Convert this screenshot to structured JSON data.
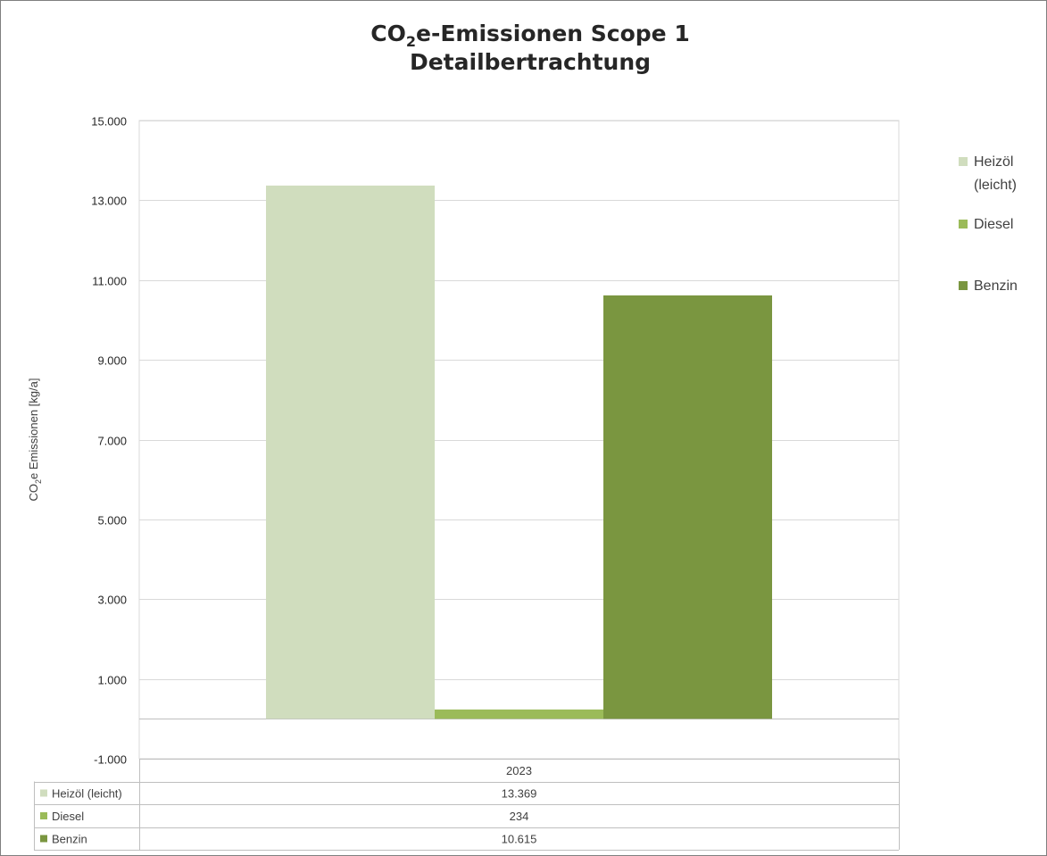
{
  "chart_data": {
    "type": "bar",
    "title": "CO₂e-Emissionen Scope 1",
    "title_parts": {
      "before": "CO",
      "sub": "2",
      "after": "e-Emissionen Scope 1"
    },
    "subtitle": "Detailbertrachtung",
    "ylabel": "CO₂e Emissionen [kg/a]",
    "ylabel_parts": {
      "before": "CO",
      "sub": "2",
      "after": "e Emissionen [kg/a]"
    },
    "categories": [
      "2023"
    ],
    "series": [
      {
        "name": "Heizöl (leicht)",
        "legend_lines": [
          "Heizöl",
          "(leicht)"
        ],
        "values": [
          13369
        ],
        "display": [
          "13.369"
        ],
        "color": "#d0ddbe"
      },
      {
        "name": "Diesel",
        "legend_lines": [
          "Diesel"
        ],
        "values": [
          234
        ],
        "display": [
          "234"
        ],
        "color": "#9bbb59"
      },
      {
        "name": "Benzin",
        "legend_lines": [
          "Benzin"
        ],
        "values": [
          10615
        ],
        "display": [
          "10.615"
        ],
        "color": "#7a9640"
      }
    ],
    "ylim": [
      -1000,
      15000
    ],
    "yticks": [
      -1000,
      1000,
      3000,
      5000,
      7000,
      9000,
      11000,
      13000,
      15000
    ],
    "ytick_labels": [
      "-1.000",
      "1.000",
      "3.000",
      "5.000",
      "7.000",
      "9.000",
      "11.000",
      "13.000",
      "15.000"
    ],
    "grid": true,
    "legend_position": "right",
    "data_table": true
  }
}
